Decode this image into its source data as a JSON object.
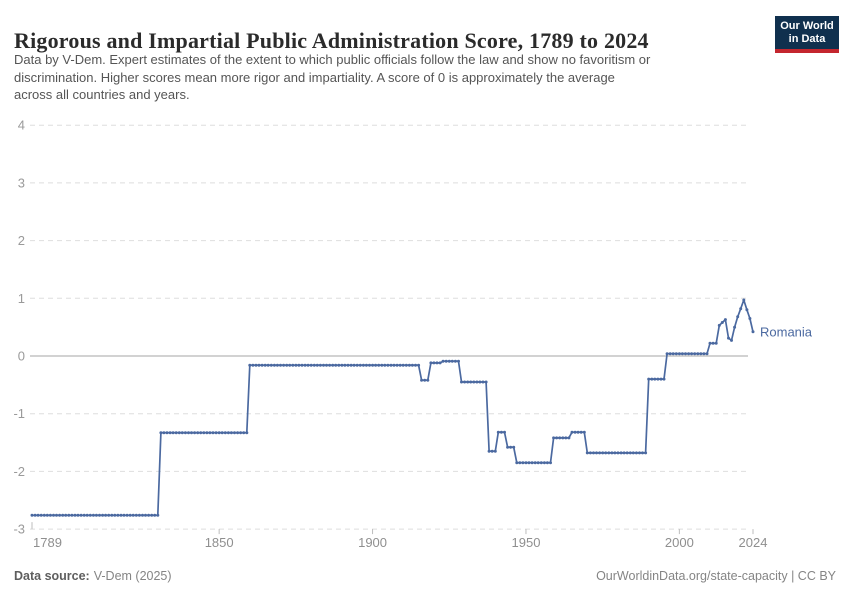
{
  "header": {
    "title": "Rigorous and Impartial Public Administration Score, 1789 to 2024",
    "subtitle_lines": [
      "Data by V-Dem. Expert estimates of the extent to which public officials follow the law and show no favoritism or",
      "discrimination. Higher scores mean more rigor and impartiality. A score of 0 is approximately the average",
      "across all countries and years."
    ],
    "logo": {
      "line1": "Our World",
      "line2": "in Data"
    }
  },
  "chart_data": {
    "type": "line",
    "title": "Rigorous and Impartial Public Administration Score, 1789 to 2024",
    "xlabel": "",
    "ylabel": "",
    "xlim": [
      1789,
      2024
    ],
    "ylim": [
      -3,
      4
    ],
    "x_ticks": [
      1789,
      1850,
      1900,
      1950,
      2000,
      2024
    ],
    "y_ticks": [
      4,
      3,
      2,
      1,
      0,
      -1,
      -2,
      -3
    ],
    "grid": "horizontal dashed gridlines, solid line at 0",
    "legend_position": "end-of-line label",
    "point_encoding": "step_points are [year, value]; each value holds for every year until the next listed year; final entry is the last data point (2024)",
    "series": [
      {
        "name": "Romania",
        "color": "#4B69A0",
        "step_points": [
          [
            1789,
            -2.76
          ],
          [
            1831,
            -1.33
          ],
          [
            1860,
            -0.16
          ],
          [
            1916,
            -0.42
          ],
          [
            1919,
            -0.12
          ],
          [
            1923,
            -0.09
          ],
          [
            1929,
            -0.45
          ],
          [
            1938,
            -1.65
          ],
          [
            1941,
            -1.32
          ],
          [
            1944,
            -1.58
          ],
          [
            1947,
            -1.85
          ],
          [
            1959,
            -1.42
          ],
          [
            1965,
            -1.32
          ],
          [
            1970,
            -1.68
          ],
          [
            1990,
            -0.4
          ],
          [
            1996,
            0.04
          ],
          [
            2010,
            0.22
          ],
          [
            2013,
            0.53
          ],
          [
            2014,
            0.58
          ],
          [
            2015,
            0.63
          ],
          [
            2016,
            0.31
          ],
          [
            2017,
            0.27
          ],
          [
            2018,
            0.5
          ],
          [
            2019,
            0.68
          ],
          [
            2020,
            0.82
          ],
          [
            2021,
            0.97
          ],
          [
            2022,
            0.8
          ],
          [
            2023,
            0.65
          ],
          [
            2024,
            0.42
          ]
        ]
      }
    ]
  },
  "footer": {
    "source_label": "Data source:",
    "source_value": "V-Dem (2025)",
    "link": "OurWorldinData.org/state-capacity | CC BY"
  },
  "colors": {
    "line": "#4B69A0",
    "entity_label": "#4B69A0",
    "grid_dashed": "#dedede",
    "zero_line": "#a6a6a6",
    "axis_tick": "#bdbdbd",
    "y_tick_label": "#9a9a9a",
    "x_tick_label": "#8f8f8f",
    "title_text": "#2b2b2b",
    "subtitle_text": "#555555",
    "logo_bg": "#10304E",
    "logo_accent": "#C4262E"
  }
}
